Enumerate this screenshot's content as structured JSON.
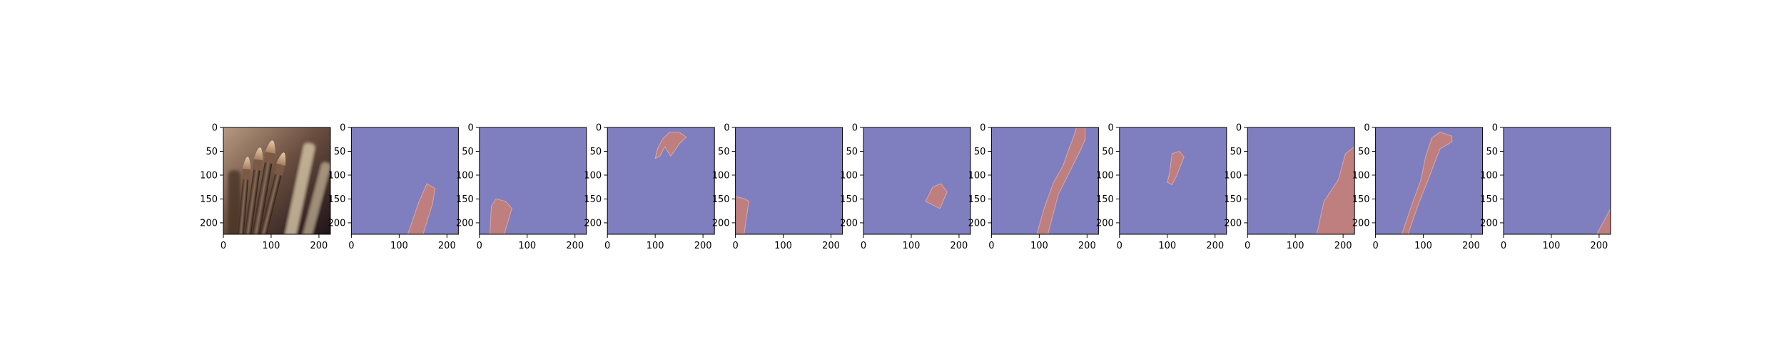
{
  "figure": {
    "panel_count": 11,
    "x_ticks": [
      "0",
      "100",
      "200"
    ],
    "y_ticks": [
      "0",
      "50",
      "100",
      "150",
      "200"
    ],
    "colors": {
      "background": "#7f7fbf",
      "mask": "#bf7f7f",
      "mask_edge": "#d9a6a6",
      "axis": "#000000"
    },
    "panels": [
      {
        "name": "source-photo",
        "kind": "photo",
        "subject": "paint-brushes"
      },
      {
        "name": "mask-1",
        "kind": "mask"
      },
      {
        "name": "mask-2",
        "kind": "mask"
      },
      {
        "name": "mask-3",
        "kind": "mask"
      },
      {
        "name": "mask-4",
        "kind": "mask"
      },
      {
        "name": "mask-5",
        "kind": "mask"
      },
      {
        "name": "mask-6",
        "kind": "mask"
      },
      {
        "name": "mask-7",
        "kind": "mask"
      },
      {
        "name": "mask-8",
        "kind": "mask"
      },
      {
        "name": "mask-9",
        "kind": "mask"
      },
      {
        "name": "mask-10",
        "kind": "mask"
      }
    ]
  }
}
